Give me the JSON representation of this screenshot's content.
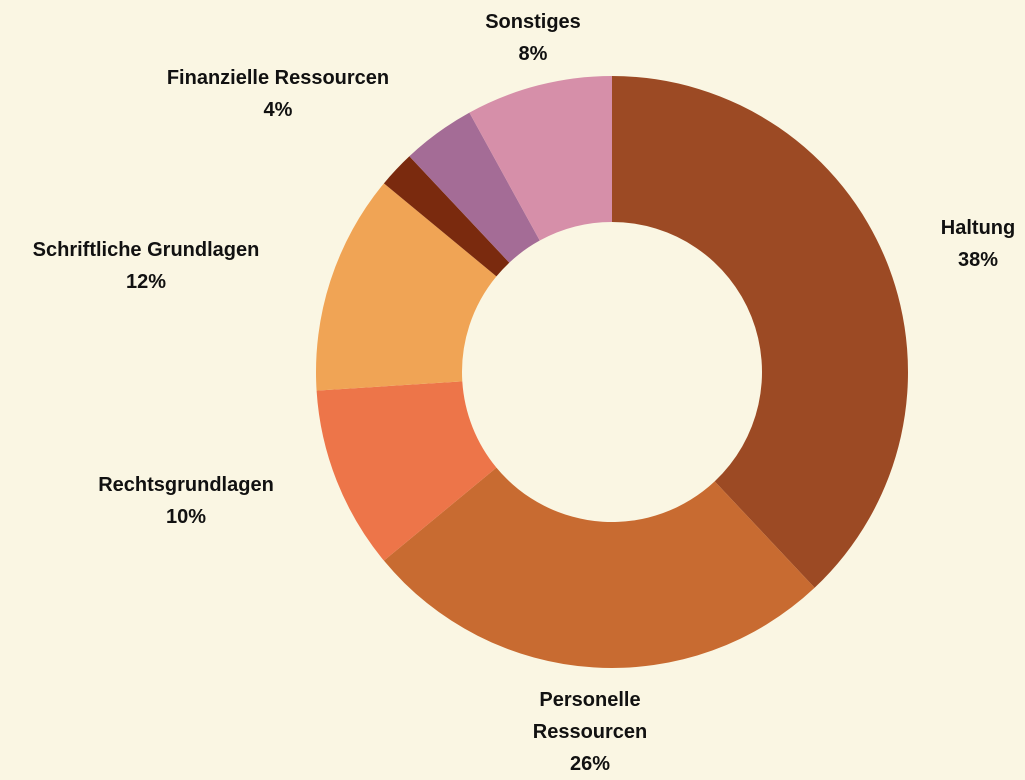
{
  "chart_data": {
    "type": "donut",
    "categories": [
      "Haltung",
      "Personelle Ressourcen",
      "Rechtsgrundlagen",
      "Schriftliche Grundlagen",
      null,
      "Finanzielle Ressourcen",
      "Sonstiges"
    ],
    "values": [
      38,
      26,
      10,
      12,
      2,
      4,
      8
    ],
    "value_labels": [
      "38%",
      "26%",
      "10%",
      "12%",
      null,
      "4%",
      "8%"
    ],
    "colors": [
      "#9c4a24",
      "#c86b31",
      "#ed7549",
      "#f0a455",
      "#7a2a0e",
      "#a46c96",
      "#d68fa9"
    ]
  }
}
